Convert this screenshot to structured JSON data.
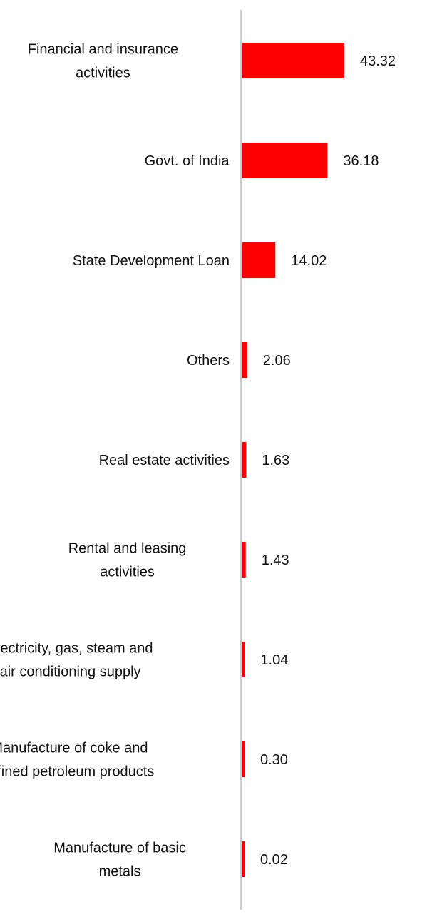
{
  "chart_data": {
    "type": "bar",
    "orientation": "horizontal",
    "categories": [
      "Financial and insurance activities",
      "Govt. of India",
      "State Development Loan",
      "Others",
      "Real estate activities",
      "Rental and leasing activities",
      "Electricity, gas, steam and air conditioning supply",
      "Manufacture of coke and refined petroleum products",
      "Manufacture of basic metals"
    ],
    "category_lines": [
      [
        "Financial and insurance",
        "activities"
      ],
      [
        "Govt. of India"
      ],
      [
        "State Development Loan"
      ],
      [
        "Others"
      ],
      [
        "Real estate activities"
      ],
      [
        "Rental and leasing",
        "activities"
      ],
      [
        "Electricity, gas, steam and",
        "air conditioning supply"
      ],
      [
        "Manufacture of coke and",
        "refined petroleum products"
      ],
      [
        "Manufacture of basic",
        "metals"
      ]
    ],
    "values": [
      43.32,
      36.18,
      14.02,
      2.06,
      1.63,
      1.43,
      1.04,
      0.3,
      0.02
    ],
    "value_labels": [
      "43.32",
      "36.18",
      "14.02",
      "2.06",
      "1.63",
      "1.43",
      "1.04",
      "0.30",
      "0.02"
    ],
    "bar_color": "#ff0000",
    "axis_color": "#cccccc",
    "grid": false,
    "legend": "none"
  }
}
